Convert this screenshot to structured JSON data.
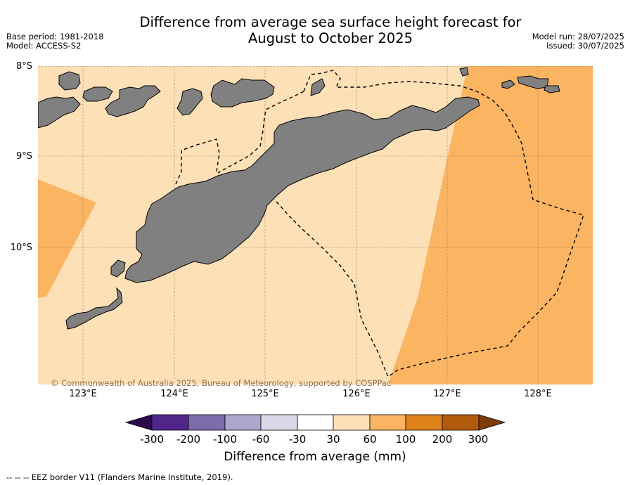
{
  "title_line1": "Difference from average sea surface height forecast for",
  "title_line2": "August to October 2025",
  "base_period": "Base period: 1981-2018",
  "model": "Model: ACCESS-S2",
  "model_run": "Model run: 28/07/2025",
  "issued": "Issued: 30/07/2025",
  "lat_labels": [
    "8°S",
    "9°S",
    "10°S"
  ],
  "lon_labels": [
    "123°E",
    "124°E",
    "125°E",
    "126°E",
    "127°E",
    "128°E"
  ],
  "copyright": "© Commonwealth of Australia 2025, Bureau of Meteorology, supported by COSPPac",
  "colorbar": {
    "ticks": [
      "-300",
      "-200",
      "-100",
      "-60",
      "-30",
      "30",
      "60",
      "100",
      "200",
      "300"
    ],
    "colors": [
      "#2d0a4e",
      "#51268a",
      "#7d6cab",
      "#ada7cf",
      "#d9d9ea",
      "#ffffff",
      "#fde0b6",
      "#fbb462",
      "#e0821c",
      "#b15a0c",
      "#7b3d06"
    ],
    "label": "Difference from average (mm)"
  },
  "map_colors": {
    "band_30_60": "#fde0b6",
    "band_60_100": "#fbb462",
    "land": "#808080"
  },
  "footnote": "--  --  -- EEZ border V11 (Flanders Marine Institute, 2019)."
}
